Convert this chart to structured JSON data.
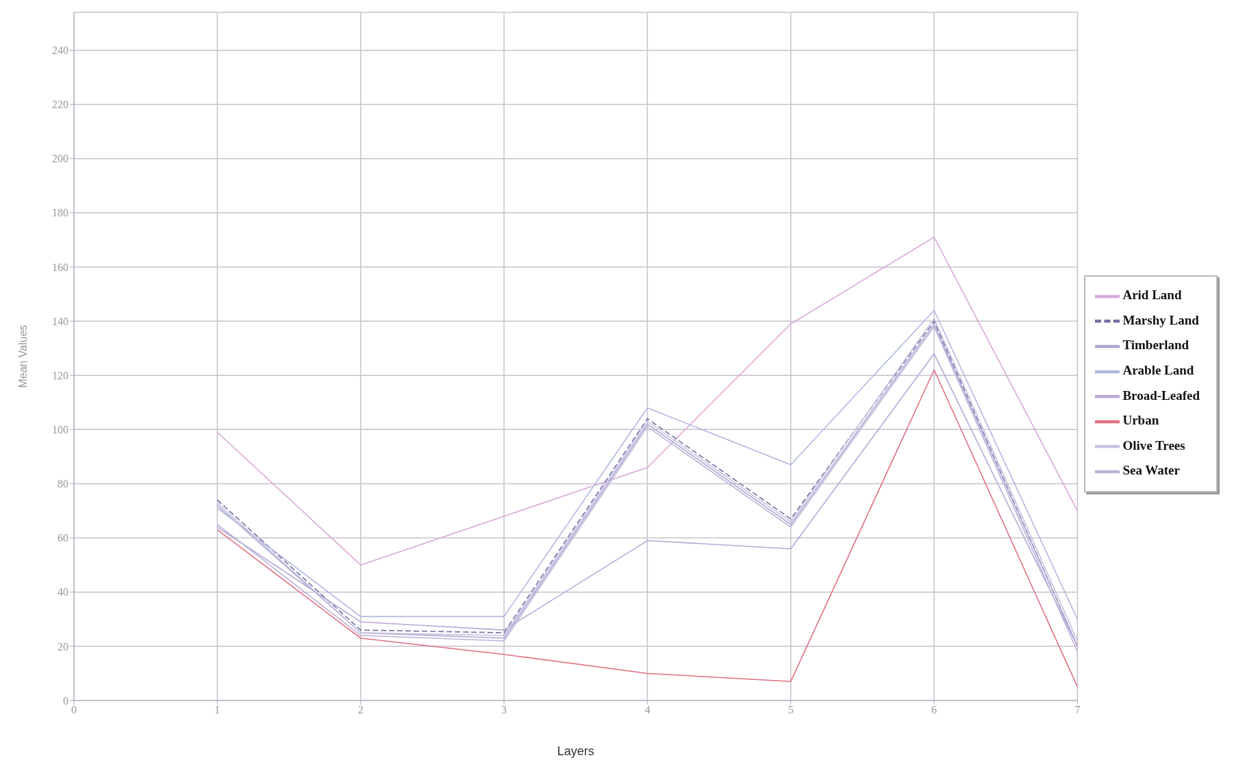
{
  "chart_data": {
    "type": "line",
    "xlabel": "Layers",
    "ylabel": "Mean Values",
    "x": [
      1,
      2,
      3,
      4,
      5,
      6,
      7
    ],
    "series": [
      {
        "name": "Arid Land",
        "color": "#d8a8d8",
        "values": [
          99,
          50,
          68,
          86,
          139,
          171,
          70
        ]
      },
      {
        "name": "Marshy Land",
        "color": "#7070a0",
        "line_style": "dashed",
        "values": [
          74,
          26,
          25,
          104,
          67,
          140,
          20
        ]
      },
      {
        "name": "Timberland",
        "color": "#a8a8d0",
        "values": [
          72,
          25,
          23,
          102,
          65,
          139,
          20
        ]
      },
      {
        "name": "Arable Land",
        "color": "#b0b8e0",
        "values": [
          71,
          31,
          31,
          108,
          87,
          144,
          30
        ]
      },
      {
        "name": "Broad-Leafed",
        "color": "#b8a8d8",
        "values": [
          64,
          29,
          26,
          59,
          56,
          128,
          20
        ]
      },
      {
        "name": "Urban",
        "color": "#e07080",
        "values": [
          63,
          23,
          17,
          10,
          7,
          122,
          5
        ]
      },
      {
        "name": "Olive Trees",
        "color": "#c8c0e0",
        "values": [
          73,
          25,
          24,
          103,
          66,
          141,
          22
        ]
      },
      {
        "name": "Sea Water",
        "color": "#c0b0d8",
        "values": [
          65,
          24,
          22,
          101,
          64,
          138,
          18
        ]
      }
    ],
    "xlim": [
      0,
      7
    ],
    "xticks": [
      0,
      1,
      2,
      3,
      4,
      5,
      6,
      7
    ],
    "ylim": [
      0,
      254
    ],
    "yticks": [
      0,
      20,
      40,
      60,
      80,
      100,
      120,
      140,
      160,
      180,
      200,
      220,
      240
    ],
    "grid": true,
    "legend": "right",
    "line_style": "solid",
    "marker": "none"
  }
}
